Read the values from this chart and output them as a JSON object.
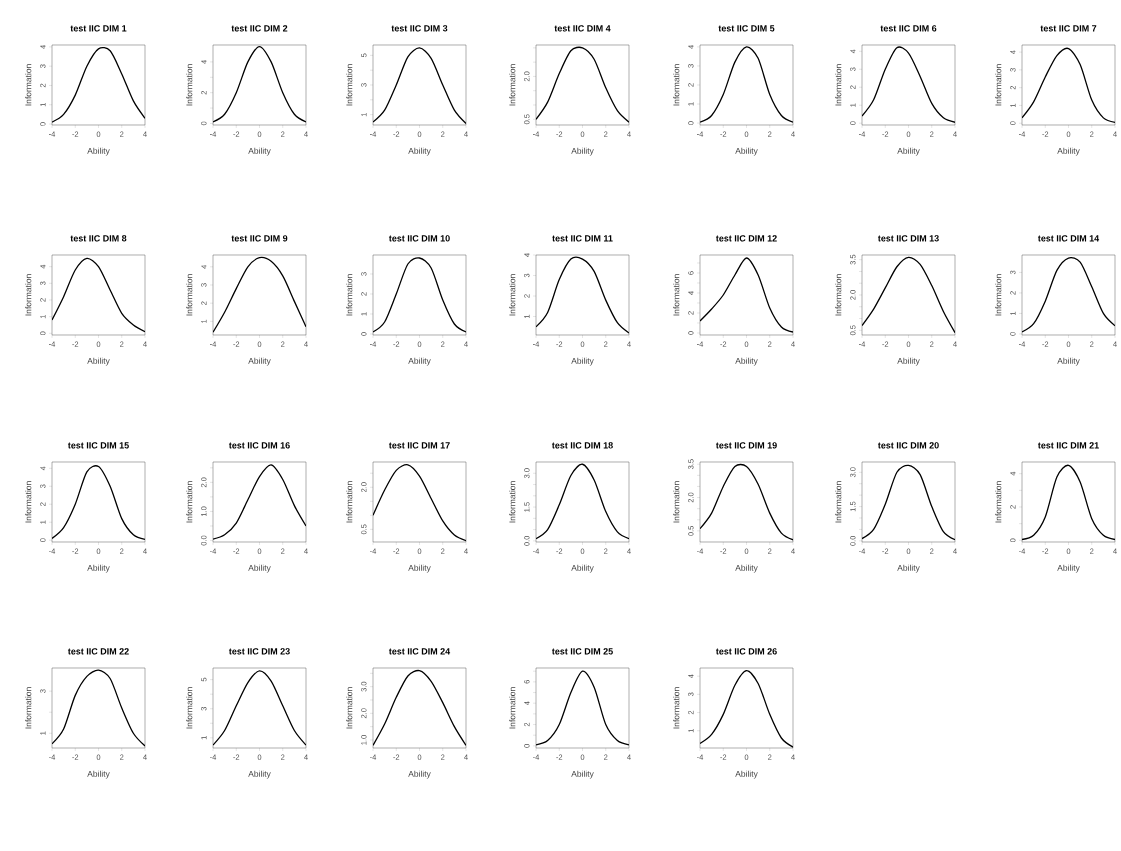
{
  "chart_data": [
    {
      "type": "line",
      "title": "test IIC DIM 1",
      "xlabel": "Ability",
      "ylabel": "Information",
      "x": [
        -4,
        -3,
        -2,
        -1,
        0,
        1,
        2,
        3,
        4
      ],
      "xlim": [
        -4,
        4
      ],
      "xticks": [
        -4,
        -2,
        0,
        2,
        4
      ],
      "ylim": [
        -0.05,
        4.1
      ],
      "yticks": [
        0,
        1,
        2,
        3,
        4
      ],
      "series": [
        {
          "color": "#000000",
          "values": [
            0.1,
            0.5,
            1.5,
            3.0,
            3.9,
            3.8,
            2.6,
            1.2,
            0.3
          ]
        }
      ]
    },
    {
      "type": "line",
      "title": "test IIC DIM 2",
      "xlabel": "Ability",
      "ylabel": "Information",
      "x": [
        -4,
        -3,
        -2,
        -1,
        0,
        1,
        2,
        3,
        4
      ],
      "xlim": [
        -4,
        4
      ],
      "xticks": [
        -4,
        -2,
        0,
        2,
        4
      ],
      "ylim": [
        -0.1,
        5.1
      ],
      "yticks": [
        0,
        {
          "value": 1,
          "label": null
        },
        2,
        {
          "value": 3,
          "label": null
        },
        4
      ],
      "series": [
        {
          "color": "#000000",
          "values": [
            0.1,
            0.6,
            2.0,
            4.0,
            5.0,
            4.0,
            2.0,
            0.6,
            0.1
          ]
        }
      ]
    },
    {
      "type": "line",
      "title": "test IIC DIM 3",
      "xlabel": "Ability",
      "ylabel": "Information",
      "x": [
        -4,
        -3,
        -2,
        -1,
        0,
        1,
        2,
        3,
        4
      ],
      "xlim": [
        -4,
        4
      ],
      "xticks": [
        -4,
        -2,
        0,
        2,
        4
      ],
      "ylim": [
        0.3,
        5.7
      ],
      "yticks": [
        1,
        {
          "value": 2,
          "label": null
        },
        3,
        {
          "value": 4,
          "label": null
        },
        5
      ],
      "series": [
        {
          "color": "#000000",
          "values": [
            0.5,
            1.3,
            3.0,
            4.9,
            5.5,
            4.8,
            3.0,
            1.3,
            0.4
          ]
        }
      ]
    },
    {
      "type": "line",
      "title": "test IIC DIM 4",
      "xlabel": "Ability",
      "ylabel": "Information",
      "x": [
        -4,
        -3,
        -2,
        -1,
        0,
        1,
        2,
        3,
        4
      ],
      "xlim": [
        -4,
        4
      ],
      "xticks": [
        -4,
        -2,
        0,
        2,
        4
      ],
      "ylim": [
        0.3,
        3.1
      ],
      "yticks": [
        0.5,
        {
          "value": 1.0,
          "label": null
        },
        {
          "value": 1.5,
          "label": null
        },
        {
          "value": 2.0,
          "label": "2.0"
        },
        {
          "value": 2.5,
          "label": null
        },
        {
          "value": 3.0,
          "label": null
        }
      ],
      "series": [
        {
          "color": "#000000",
          "values": [
            0.5,
            1.1,
            2.1,
            2.9,
            3.0,
            2.6,
            1.6,
            0.8,
            0.4
          ]
        }
      ]
    },
    {
      "type": "line",
      "title": "test IIC DIM 5",
      "xlabel": "Ability",
      "ylabel": "Information",
      "x": [
        -4,
        -3,
        -2,
        -1,
        0,
        1,
        2,
        3,
        4
      ],
      "xlim": [
        -4,
        4
      ],
      "xticks": [
        -4,
        -2,
        0,
        2,
        4
      ],
      "ylim": [
        -0.1,
        4.1
      ],
      "yticks": [
        0,
        1,
        2,
        3,
        4
      ],
      "series": [
        {
          "color": "#000000",
          "values": [
            0.05,
            0.4,
            1.5,
            3.2,
            4.0,
            3.4,
            1.5,
            0.4,
            0.05
          ]
        }
      ]
    },
    {
      "type": "line",
      "title": "test IIC DIM 6",
      "xlabel": "Ability",
      "ylabel": "Information",
      "x": [
        -4,
        -3,
        -2,
        -1,
        0,
        1,
        2,
        3,
        4
      ],
      "xlim": [
        -4,
        4
      ],
      "xticks": [
        -4,
        -2,
        0,
        2,
        4
      ],
      "ylim": [
        -0.1,
        4.35
      ],
      "yticks": [
        0,
        1,
        2,
        3,
        4
      ],
      "series": [
        {
          "color": "#000000",
          "values": [
            0.4,
            1.3,
            3.0,
            4.2,
            3.9,
            2.6,
            1.1,
            0.3,
            0.05
          ]
        }
      ]
    },
    {
      "type": "line",
      "title": "test IIC DIM 7",
      "xlabel": "Ability",
      "ylabel": "Information",
      "x": [
        -4,
        -3,
        -2,
        -1,
        0,
        1,
        2,
        3,
        4
      ],
      "xlim": [
        -4,
        4
      ],
      "xticks": [
        -4,
        -2,
        0,
        2,
        4
      ],
      "ylim": [
        -0.1,
        4.4
      ],
      "yticks": [
        0,
        1,
        2,
        3,
        4
      ],
      "series": [
        {
          "color": "#000000",
          "values": [
            0.3,
            1.2,
            2.6,
            3.8,
            4.2,
            3.3,
            1.3,
            0.3,
            0.05
          ]
        }
      ]
    },
    {
      "type": "line",
      "title": "test IIC DIM 8",
      "xlabel": "Ability",
      "ylabel": "Information",
      "x": [
        -4,
        -3,
        -2,
        -1,
        0,
        1,
        2,
        3,
        4
      ],
      "xlim": [
        -4,
        4
      ],
      "xticks": [
        -4,
        -2,
        0,
        2,
        4
      ],
      "ylim": [
        -0.1,
        4.7
      ],
      "yticks": [
        0,
        1,
        2,
        3,
        4
      ],
      "series": [
        {
          "color": "#000000",
          "values": [
            0.8,
            2.2,
            3.8,
            4.5,
            4.0,
            2.6,
            1.2,
            0.5,
            0.1
          ]
        }
      ]
    },
    {
      "type": "line",
      "title": "test IIC DIM 9",
      "xlabel": "Ability",
      "ylabel": "Information",
      "x": [
        -4,
        -3,
        -2,
        -1,
        0,
        1,
        2,
        3,
        4
      ],
      "xlim": [
        -4,
        4
      ],
      "xticks": [
        -4,
        -2,
        0,
        2,
        4
      ],
      "ylim": [
        0.25,
        4.65
      ],
      "yticks": [
        1,
        2,
        3,
        4
      ],
      "series": [
        {
          "color": "#000000",
          "values": [
            0.4,
            1.5,
            2.8,
            4.0,
            4.5,
            4.3,
            3.5,
            2.1,
            0.7
          ]
        }
      ]
    },
    {
      "type": "line",
      "title": "test IIC DIM 10",
      "xlabel": "Ability",
      "ylabel": "Information",
      "x": [
        -4,
        -3,
        -2,
        -1,
        0,
        1,
        2,
        3,
        4
      ],
      "xlim": [
        -4,
        4
      ],
      "xticks": [
        -4,
        -2,
        0,
        2,
        4
      ],
      "ylim": [
        -0.05,
        3.95
      ],
      "yticks": [
        0,
        1,
        2,
        3
      ],
      "series": [
        {
          "color": "#000000",
          "values": [
            0.1,
            0.6,
            2.0,
            3.5,
            3.8,
            3.3,
            1.7,
            0.5,
            0.1
          ]
        }
      ]
    },
    {
      "type": "line",
      "title": "test IIC DIM 11",
      "xlabel": "Ability",
      "ylabel": "Information",
      "x": [
        -4,
        -3,
        -2,
        -1,
        0,
        1,
        2,
        3,
        4
      ],
      "xlim": [
        -4,
        4
      ],
      "xticks": [
        -4,
        -2,
        0,
        2,
        4
      ],
      "ylim": [
        0.1,
        4.0
      ],
      "yticks": [
        1,
        2,
        3,
        4
      ],
      "series": [
        {
          "color": "#000000",
          "values": [
            0.5,
            1.2,
            2.8,
            3.8,
            3.8,
            3.2,
            1.8,
            0.7,
            0.2
          ]
        }
      ]
    },
    {
      "type": "line",
      "title": "test IIC DIM 12",
      "xlabel": "Ability",
      "ylabel": "Information",
      "x": [
        -4,
        -3,
        -2,
        -1,
        0,
        1,
        2,
        3,
        4
      ],
      "xlim": [
        -4,
        4
      ],
      "xticks": [
        -4,
        -2,
        0,
        2,
        4
      ],
      "ylim": [
        -0.2,
        7.8
      ],
      "yticks": [
        0,
        {
          "value": 1,
          "label": null
        },
        2,
        {
          "value": 3,
          "label": null
        },
        4,
        {
          "value": 5,
          "label": null
        },
        6,
        {
          "value": 7,
          "label": null
        }
      ],
      "series": [
        {
          "color": "#000000",
          "values": [
            1.2,
            2.4,
            3.8,
            5.8,
            7.5,
            5.8,
            2.5,
            0.6,
            0.1
          ]
        }
      ]
    },
    {
      "type": "line",
      "title": "test IIC DIM 13",
      "xlabel": "Ability",
      "ylabel": "Information",
      "x": [
        -4,
        -3,
        -2,
        -1,
        0,
        1,
        2,
        3,
        4
      ],
      "xlim": [
        -4,
        4
      ],
      "xticks": [
        -4,
        -2,
        0,
        2,
        4
      ],
      "ylim": [
        0.3,
        3.7
      ],
      "yticks": [
        0.5,
        {
          "value": 1.0,
          "label": null
        },
        {
          "value": 1.5,
          "label": null
        },
        {
          "value": 2.0,
          "label": "2.0"
        },
        {
          "value": 2.5,
          "label": null
        },
        {
          "value": 3.0,
          "label": null
        },
        3.5
      ],
      "series": [
        {
          "color": "#000000",
          "values": [
            0.7,
            1.4,
            2.3,
            3.2,
            3.6,
            3.3,
            2.4,
            1.3,
            0.4
          ]
        }
      ]
    },
    {
      "type": "line",
      "title": "test IIC DIM 14",
      "xlabel": "Ability",
      "ylabel": "Information",
      "x": [
        -4,
        -3,
        -2,
        -1,
        0,
        1,
        2,
        3,
        4
      ],
      "xlim": [
        -4,
        4
      ],
      "xticks": [
        -4,
        -2,
        0,
        2,
        4
      ],
      "ylim": [
        -0.05,
        3.85
      ],
      "yticks": [
        0,
        1,
        2,
        3
      ],
      "series": [
        {
          "color": "#000000",
          "values": [
            0.1,
            0.5,
            1.6,
            3.1,
            3.7,
            3.5,
            2.3,
            1.0,
            0.4
          ]
        }
      ]
    },
    {
      "type": "line",
      "title": "test IIC DIM 15",
      "xlabel": "Ability",
      "ylabel": "Information",
      "x": [
        -4,
        -3,
        -2,
        -1,
        0,
        1,
        2,
        3,
        4
      ],
      "xlim": [
        -4,
        4
      ],
      "xticks": [
        -4,
        -2,
        0,
        2,
        4
      ],
      "ylim": [
        -0.1,
        4.35
      ],
      "yticks": [
        0,
        1,
        2,
        3,
        4
      ],
      "series": [
        {
          "color": "#000000",
          "values": [
            0.1,
            0.7,
            2.0,
            3.8,
            4.1,
            3.0,
            1.2,
            0.3,
            0.05
          ]
        }
      ]
    },
    {
      "type": "line",
      "title": "test IIC DIM 16",
      "xlabel": "Ability",
      "ylabel": "Information",
      "x": [
        -4,
        -3,
        -2,
        -1,
        0,
        1,
        2,
        3,
        4
      ],
      "xlim": [
        -4,
        4
      ],
      "xticks": [
        -4,
        -2,
        0,
        2,
        4
      ],
      "ylim": [
        -0.05,
        2.7
      ],
      "yticks": [
        {
          "value": 0,
          "label": "0.0"
        },
        {
          "value": 0.5,
          "label": null
        },
        {
          "value": 1,
          "label": "1.0"
        },
        {
          "value": 1.5,
          "label": null
        },
        {
          "value": 2,
          "label": "2.0"
        },
        {
          "value": 2.5,
          "label": null
        }
      ],
      "series": [
        {
          "color": "#000000",
          "values": [
            0.05,
            0.2,
            0.6,
            1.4,
            2.2,
            2.6,
            2.1,
            1.2,
            0.5
          ]
        }
      ]
    },
    {
      "type": "line",
      "title": "test IIC DIM 17",
      "xlabel": "Ability",
      "ylabel": "Information",
      "x": [
        -4,
        -3,
        -2,
        -1,
        0,
        1,
        2,
        3,
        4
      ],
      "xlim": [
        -4,
        4
      ],
      "xticks": [
        -4,
        -2,
        0,
        2,
        4
      ],
      "ylim": [
        0.05,
        2.9
      ],
      "yticks": [
        0.5,
        {
          "value": 1.0,
          "label": null
        },
        {
          "value": 1.5,
          "label": null
        },
        {
          "value": 2.0,
          "label": "2.0"
        },
        {
          "value": 2.5,
          "label": null
        }
      ],
      "series": [
        {
          "color": "#000000",
          "values": [
            1.0,
            1.9,
            2.6,
            2.8,
            2.4,
            1.6,
            0.8,
            0.3,
            0.1
          ]
        }
      ]
    },
    {
      "type": "line",
      "title": "test IIC DIM 18",
      "xlabel": "Ability",
      "ylabel": "Information",
      "x": [
        -4,
        -3,
        -2,
        -1,
        0,
        1,
        2,
        3,
        4
      ],
      "xlim": [
        -4,
        4
      ],
      "xticks": [
        -4,
        -2,
        0,
        2,
        4
      ],
      "ylim": [
        -0.05,
        3.5
      ],
      "yticks": [
        {
          "value": 0,
          "label": "0.0"
        },
        {
          "value": 0.5,
          "label": null
        },
        {
          "value": 1.0,
          "label": null
        },
        1.5,
        {
          "value": 2.0,
          "label": null
        },
        {
          "value": 2.5,
          "label": null
        },
        {
          "value": 3,
          "label": "3.0"
        }
      ],
      "series": [
        {
          "color": "#000000",
          "values": [
            0.1,
            0.5,
            1.6,
            2.9,
            3.4,
            2.7,
            1.3,
            0.4,
            0.1
          ]
        }
      ]
    },
    {
      "type": "line",
      "title": "test IIC DIM 19",
      "xlabel": "Ability",
      "ylabel": "Information",
      "x": [
        -4,
        -3,
        -2,
        -1,
        0,
        1,
        2,
        3,
        4
      ],
      "xlim": [
        -4,
        4
      ],
      "xticks": [
        -4,
        -2,
        0,
        2,
        4
      ],
      "ylim": [
        0.0,
        3.6
      ],
      "yticks": [
        0.5,
        {
          "value": 1.0,
          "label": null
        },
        {
          "value": 1.5,
          "label": null
        },
        {
          "value": 2.0,
          "label": "2.0"
        },
        {
          "value": 2.5,
          "label": null
        },
        {
          "value": 3.0,
          "label": null
        },
        3.5
      ],
      "series": [
        {
          "color": "#000000",
          "values": [
            0.6,
            1.3,
            2.5,
            3.4,
            3.4,
            2.6,
            1.3,
            0.4,
            0.1
          ]
        }
      ]
    },
    {
      "type": "line",
      "title": "test IIC DIM 20",
      "xlabel": "Ability",
      "ylabel": "Information",
      "x": [
        -4,
        -3,
        -2,
        -1,
        0,
        1,
        2,
        3,
        4
      ],
      "xlim": [
        -4,
        4
      ],
      "xticks": [
        -4,
        -2,
        0,
        2,
        4
      ],
      "ylim": [
        -0.05,
        3.45
      ],
      "yticks": [
        {
          "value": 0,
          "label": "0.0"
        },
        {
          "value": 0.5,
          "label": null
        },
        {
          "value": 1.0,
          "label": null
        },
        1.5,
        {
          "value": 2.0,
          "label": null
        },
        {
          "value": 2.5,
          "label": null
        },
        {
          "value": 3,
          "label": "3.0"
        }
      ],
      "series": [
        {
          "color": "#000000",
          "values": [
            0.1,
            0.5,
            1.6,
            3.0,
            3.3,
            2.9,
            1.5,
            0.4,
            0.05
          ]
        }
      ]
    },
    {
      "type": "line",
      "title": "test IIC DIM 21",
      "xlabel": "Ability",
      "ylabel": "Information",
      "x": [
        -4,
        -3,
        -2,
        -1,
        0,
        1,
        2,
        3,
        4
      ],
      "xlim": [
        -4,
        4
      ],
      "xticks": [
        -4,
        -2,
        0,
        2,
        4
      ],
      "ylim": [
        -0.1,
        4.7
      ],
      "yticks": [
        0,
        {
          "value": 1,
          "label": null
        },
        2,
        {
          "value": 3,
          "label": null
        },
        4
      ],
      "series": [
        {
          "color": "#000000",
          "values": [
            0.05,
            0.3,
            1.4,
            3.8,
            4.5,
            3.5,
            1.3,
            0.3,
            0.05
          ]
        }
      ]
    },
    {
      "type": "line",
      "title": "test IIC DIM 22",
      "xlabel": "Ability",
      "ylabel": "Information",
      "x": [
        -4,
        -3,
        -2,
        -1,
        0,
        1,
        2,
        3,
        4
      ],
      "xlim": [
        -4,
        4
      ],
      "xticks": [
        -4,
        -2,
        0,
        2,
        4
      ],
      "ylim": [
        0.3,
        4.1
      ],
      "yticks": [
        1,
        {
          "value": 2,
          "label": null
        },
        3
      ],
      "series": [
        {
          "color": "#000000",
          "values": [
            0.5,
            1.2,
            2.8,
            3.7,
            4.0,
            3.6,
            2.2,
            1.0,
            0.4
          ]
        }
      ]
    },
    {
      "type": "line",
      "title": "test IIC DIM 23",
      "xlabel": "Ability",
      "ylabel": "Information",
      "x": [
        -4,
        -3,
        -2,
        -1,
        0,
        1,
        2,
        3,
        4
      ],
      "xlim": [
        -4,
        4
      ],
      "xticks": [
        -4,
        -2,
        0,
        2,
        4
      ],
      "ylim": [
        0.3,
        5.8
      ],
      "yticks": [
        1,
        {
          "value": 2,
          "label": null
        },
        3,
        {
          "value": 4,
          "label": null
        },
        5
      ],
      "series": [
        {
          "color": "#000000",
          "values": [
            0.5,
            1.5,
            3.2,
            4.8,
            5.6,
            4.9,
            3.2,
            1.5,
            0.5
          ]
        }
      ]
    },
    {
      "type": "line",
      "title": "test IIC DIM 24",
      "xlabel": "Ability",
      "ylabel": "Information",
      "x": [
        -4,
        -3,
        -2,
        -1,
        0,
        1,
        2,
        3,
        4
      ],
      "xlim": [
        -4,
        4
      ],
      "xticks": [
        -4,
        -2,
        0,
        2,
        4
      ],
      "ylim": [
        0.7,
        3.7
      ],
      "yticks": [
        {
          "value": 1,
          "label": "1.0"
        },
        {
          "value": 1.5,
          "label": null
        },
        {
          "value": 2,
          "label": "2.0"
        },
        {
          "value": 2.5,
          "label": null
        },
        {
          "value": 3,
          "label": "3.0"
        },
        {
          "value": 3.5,
          "label": null
        }
      ],
      "series": [
        {
          "color": "#000000",
          "values": [
            0.8,
            1.6,
            2.6,
            3.4,
            3.6,
            3.2,
            2.4,
            1.5,
            0.8
          ]
        }
      ]
    },
    {
      "type": "line",
      "title": "test IIC DIM 25",
      "xlabel": "Ability",
      "ylabel": "Information",
      "x": [
        -4,
        -3,
        -2,
        -1,
        0,
        1,
        2,
        3,
        4
      ],
      "xlim": [
        -4,
        4
      ],
      "xticks": [
        -4,
        -2,
        0,
        2,
        4
      ],
      "ylim": [
        -0.2,
        7.3
      ],
      "yticks": [
        0,
        {
          "value": 1,
          "label": null
        },
        2,
        {
          "value": 3,
          "label": null
        },
        4,
        {
          "value": 5,
          "label": null
        },
        6,
        {
          "value": 7,
          "label": null
        }
      ],
      "series": [
        {
          "color": "#000000",
          "values": [
            0.1,
            0.5,
            2.0,
            5.0,
            7.0,
            5.5,
            2.0,
            0.5,
            0.1
          ]
        }
      ]
    },
    {
      "type": "line",
      "title": "test IIC DIM 26",
      "xlabel": "Ability",
      "ylabel": "Information",
      "x": [
        -4,
        -3,
        -2,
        -1,
        0,
        1,
        2,
        3,
        4
      ],
      "xlim": [
        -4,
        4
      ],
      "xticks": [
        -4,
        -2,
        0,
        2,
        4
      ],
      "ylim": [
        0.05,
        4.45
      ],
      "yticks": [
        1,
        2,
        3,
        4
      ],
      "series": [
        {
          "color": "#000000",
          "values": [
            0.3,
            0.8,
            1.9,
            3.5,
            4.3,
            3.6,
            1.9,
            0.6,
            0.1
          ]
        }
      ]
    }
  ]
}
